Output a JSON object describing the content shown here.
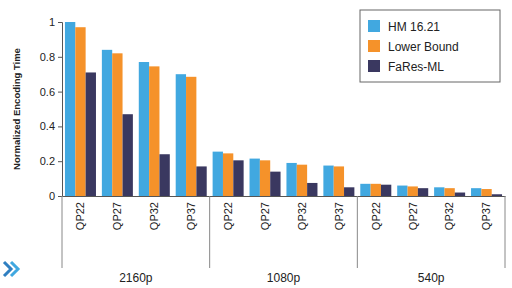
{
  "chart_data": {
    "type": "bar",
    "y_label": "Normalized Encoding Time",
    "categories": [
      "QP22",
      "QP27",
      "QP32",
      "QP37",
      "QP22",
      "QP27",
      "QP32",
      "QP37",
      "QP22",
      "QP27",
      "QP32",
      "QP37"
    ],
    "group_labels": [
      "2160p",
      "1080p",
      "540p"
    ],
    "series": [
      {
        "name": "HM 16.21",
        "color": "#41a8e0",
        "values": [
          1.0,
          0.84,
          0.77,
          0.7,
          0.255,
          0.215,
          0.19,
          0.175,
          0.07,
          0.06,
          0.05,
          0.045
        ]
      },
      {
        "name": "Lower Bound",
        "color": "#f5922a",
        "values": [
          0.97,
          0.82,
          0.745,
          0.685,
          0.245,
          0.205,
          0.18,
          0.17,
          0.07,
          0.055,
          0.045,
          0.04
        ]
      },
      {
        "name": "FaRes-ML",
        "color": "#3a3860",
        "values": [
          0.71,
          0.47,
          0.24,
          0.17,
          0.205,
          0.14,
          0.075,
          0.05,
          0.065,
          0.045,
          0.02,
          0.01
        ]
      }
    ],
    "ylim": [
      0,
      1
    ],
    "yticks": [
      0,
      0.2,
      0.4,
      0.6,
      0.8,
      1
    ],
    "grid": false,
    "legend": "upper right"
  }
}
